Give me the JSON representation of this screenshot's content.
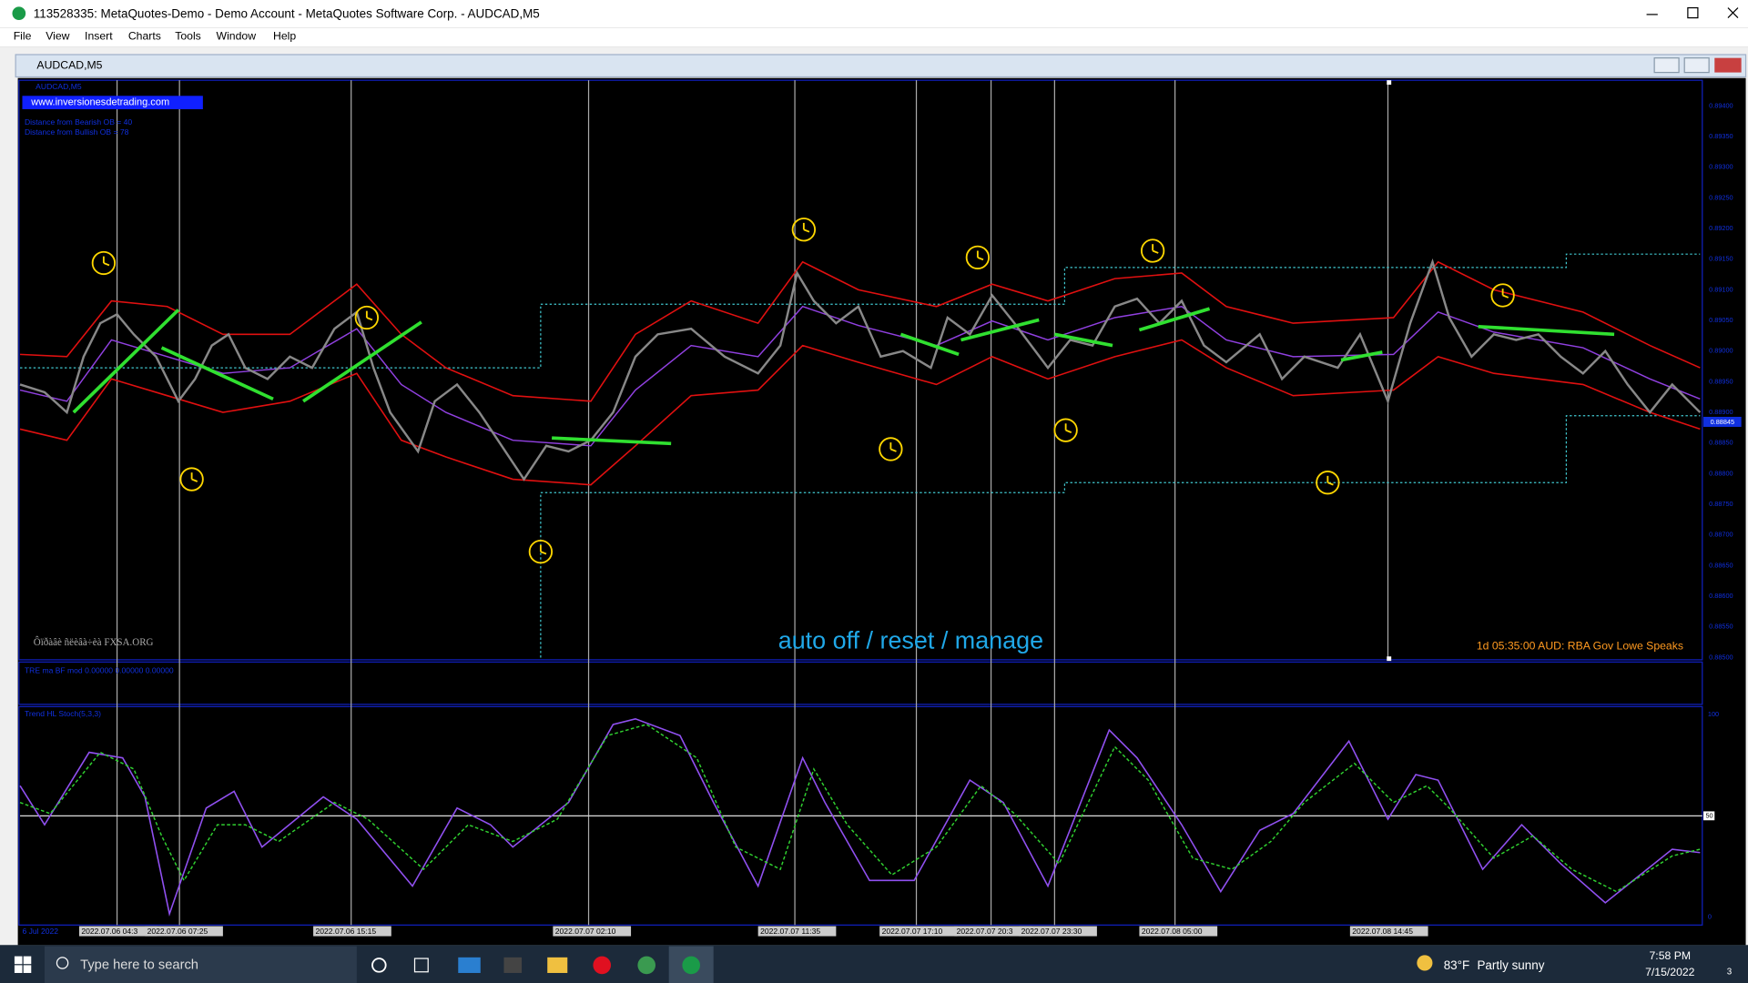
{
  "window": {
    "title": "113528335: MetaQuotes-Demo - Demo Account - MetaQuotes Software Corp. - AUDCAD,M5",
    "menu": [
      "File",
      "View",
      "Insert",
      "Charts",
      "Tools",
      "Window",
      "Help"
    ],
    "chart_tab": "AUDCAD,M5"
  },
  "chart": {
    "symbol_label": "AUDCAD,M5",
    "website": "www.inversionesdetrading.com",
    "info_lines": [
      "Distance from Bearish OB = 40",
      "Distance from Bullish OB = 78"
    ],
    "watermark": "Ôïðàâè ñëèâà÷èà FXSA.ORG",
    "button_text": "auto off / reset / manage",
    "news": "1d 05:35:00   AUD: RBA Gov Lowe Speaks",
    "price_labels": [
      "0.89400",
      "0.89350",
      "0.89300",
      "0.89250",
      "0.89200",
      "0.89150",
      "0.89100",
      "0.89050",
      "0.89000",
      "0.88950",
      "0.88900",
      "0.88850",
      "0.88800",
      "0.88750",
      "0.88700",
      "0.88650",
      "0.88600",
      "0.88550",
      "0.88500"
    ],
    "current_price": "0.88845",
    "indicator1": "TRE ma BF mod 0.00000 0.00000 0.00000",
    "indicator2": "Trend HL Stoch(5,3,3)",
    "osc_labels": [
      "100",
      "50",
      "0"
    ],
    "time_labels": [
      "6 Jul 2022",
      "2022.07.06 04:3",
      "2022.07.06 07:25",
      "2022.07.06 15:15",
      "2022.07.07 02:10",
      "2022.07.07 11:35",
      "2022.07.07 17:10",
      "2022.07.07 20:3",
      "2022.07.07 23:30",
      "2022.07.08 05:00",
      "2022.07.08 14:45"
    ]
  },
  "taskbar": {
    "search": "Type here to search",
    "temperature": "83°F",
    "weather": "Partly sunny",
    "time": "7:58 PM",
    "date": "7/15/2022",
    "notifications": "3"
  }
}
